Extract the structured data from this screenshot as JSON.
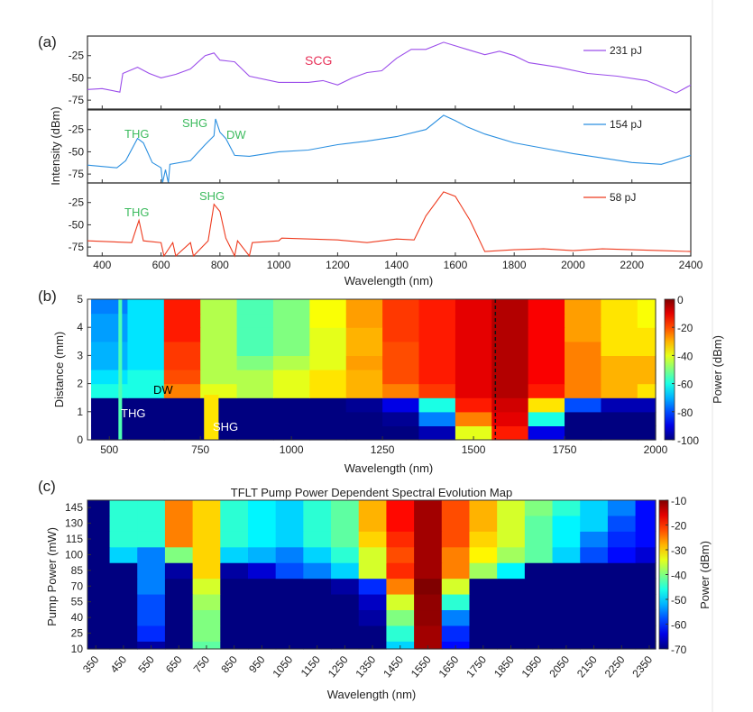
{
  "chart_data": [
    {
      "type": "line",
      "panel_label": "(a)",
      "xlabel": "Wavelength (nm)",
      "ylabel": "Intensity (dBm)",
      "xlim": [
        350,
        2400
      ],
      "ylim": [
        -85,
        -3
      ],
      "xticks": [
        400,
        600,
        800,
        1000,
        1200,
        1400,
        1600,
        1800,
        2000,
        2200,
        2400
      ],
      "yticks": [
        -25,
        -50,
        -75
      ],
      "series": [
        {
          "name": "231 pJ",
          "color": "#9b4dea",
          "x": [
            350,
            400,
            460,
            470,
            520,
            560,
            600,
            650,
            700,
            750,
            780,
            800,
            850,
            900,
            1000,
            1100,
            1150,
            1200,
            1250,
            1300,
            1350,
            1400,
            1450,
            1500,
            1560,
            1640,
            1700,
            1750,
            1800,
            1850,
            1950,
            2050,
            2150,
            2250,
            2350,
            2400
          ],
          "y": [
            -63,
            -62,
            -66,
            -45,
            -38,
            -45,
            -50,
            -46,
            -40,
            -25,
            -22,
            -30,
            -32,
            -48,
            -55,
            -55,
            -53,
            -58,
            -50,
            -44,
            -42,
            -28,
            -18,
            -18,
            -10,
            -18,
            -24,
            -20,
            -25,
            -33,
            -38,
            -45,
            -48,
            -53,
            -67,
            -58
          ]
        },
        {
          "name": "154 pJ",
          "color": "#2a8fe0",
          "x": [
            350,
            450,
            480,
            520,
            540,
            570,
            600,
            605,
            615,
            625,
            630,
            700,
            750,
            780,
            785,
            800,
            820,
            850,
            900,
            1000,
            1100,
            1200,
            1300,
            1400,
            1500,
            1560,
            1600,
            1640,
            1700,
            1800,
            1900,
            2000,
            2100,
            2200,
            2300,
            2400
          ],
          "y": [
            -65,
            -68,
            -60,
            -35,
            -40,
            -62,
            -68,
            -85,
            -70,
            -85,
            -64,
            -60,
            -42,
            -32,
            -13,
            -28,
            -35,
            -54,
            -55,
            -50,
            -48,
            -42,
            -38,
            -33,
            -25,
            -9,
            -15,
            -22,
            -30,
            -40,
            -46,
            -52,
            -57,
            -62,
            -64,
            -54
          ]
        },
        {
          "name": "58 pJ",
          "color": "#ee3a1e",
          "x": [
            350,
            500,
            510,
            525,
            540,
            600,
            610,
            640,
            650,
            700,
            710,
            760,
            780,
            800,
            820,
            850,
            860,
            900,
            910,
            1000,
            1010,
            1200,
            1300,
            1400,
            1460,
            1500,
            1560,
            1600,
            1650,
            1700,
            1800,
            1900,
            2000,
            2100,
            2200,
            2300,
            2400
          ],
          "y": [
            -68,
            -70,
            -60,
            -45,
            -68,
            -70,
            -85,
            -70,
            -85,
            -70,
            -85,
            -68,
            -27,
            -35,
            -65,
            -85,
            -68,
            -85,
            -70,
            -68,
            -65,
            -67,
            -70,
            -66,
            -67,
            -40,
            -13,
            -18,
            -45,
            -80,
            -78,
            -77,
            -79,
            -77,
            -78,
            -79,
            -80
          ]
        }
      ],
      "annotations": [
        {
          "text": "SCG",
          "color": "#e8335a"
        },
        {
          "text": "THG",
          "color": "#3dbb5e"
        },
        {
          "text": "SHG",
          "color": "#3dbb5e"
        },
        {
          "text": "DW",
          "color": "#3dbb5e"
        },
        {
          "text": "THG",
          "color": "#3dbb5e"
        },
        {
          "text": "SHG",
          "color": "#3dbb5e"
        }
      ]
    },
    {
      "type": "heatmap",
      "panel_label": "(b)",
      "xlabel": "Wavelength (nm)",
      "ylabel": "Distance (mm)",
      "colorbar_label": "Power (dBm)",
      "xlim": [
        440,
        2000
      ],
      "ylim": [
        0,
        5
      ],
      "clim": [
        -100,
        0
      ],
      "xticks": [
        500,
        750,
        1000,
        1250,
        1500,
        1750,
        2000
      ],
      "yticks": [
        0,
        1,
        2,
        3,
        4,
        5
      ],
      "cticks": [
        0,
        -20,
        -40,
        -60,
        -80,
        -100
      ],
      "x_centers": [
        500,
        600,
        700,
        800,
        900,
        1000,
        1100,
        1200,
        1300,
        1400,
        1500,
        1600,
        1700,
        1800,
        1900,
        2000
      ],
      "x_bin": 100,
      "y_starts": [
        0,
        0.5,
        1,
        1.5,
        2,
        2.5,
        3,
        3.5,
        4,
        4.5
      ],
      "y_bin": 0.5,
      "values": [
        [
          -100,
          -100,
          -100,
          -100,
          -100,
          -100,
          -100,
          -100,
          -100,
          -95,
          -40,
          -15,
          -90,
          -100,
          -100,
          -100
        ],
        [
          -100,
          -100,
          -100,
          -100,
          -100,
          -100,
          -100,
          -100,
          -98,
          -75,
          -25,
          -10,
          -60,
          -100,
          -100,
          -100
        ],
        [
          -100,
          -100,
          -100,
          -100,
          -100,
          -100,
          -100,
          -98,
          -90,
          -60,
          -15,
          -8,
          -35,
          -80,
          -95,
          -95
        ],
        [
          -60,
          -60,
          -25,
          -40,
          -45,
          -40,
          -35,
          -30,
          -25,
          -18,
          -10,
          -5,
          -15,
          -25,
          -30,
          -35
        ],
        [
          -65,
          -60,
          -20,
          -45,
          -45,
          -40,
          -35,
          -30,
          -20,
          -15,
          -10,
          -5,
          -12,
          -25,
          -30,
          -30
        ],
        [
          -70,
          -65,
          -18,
          -45,
          -50,
          -45,
          -40,
          -28,
          -20,
          -15,
          -10,
          -5,
          -12,
          -25,
          -30,
          -30
        ],
        [
          -70,
          -65,
          -18,
          -45,
          -55,
          -50,
          -40,
          -30,
          -20,
          -15,
          -10,
          -5,
          -12,
          -25,
          -35,
          -35
        ],
        [
          -72,
          -65,
          -15,
          -45,
          -55,
          -50,
          -40,
          -30,
          -18,
          -15,
          -10,
          -5,
          -12,
          -28,
          -35,
          -35
        ],
        [
          -72,
          -65,
          -15,
          -45,
          -55,
          -50,
          -38,
          -28,
          -18,
          -15,
          -10,
          -5,
          -12,
          -28,
          -35,
          -38
        ],
        [
          -75,
          -65,
          -15,
          -45,
          -55,
          -50,
          -38,
          -28,
          -18,
          -15,
          -10,
          -5,
          -12,
          -28,
          -35,
          -38
        ]
      ],
      "features": [
        {
          "name": "THG",
          "x": 530,
          "width": 10,
          "y": [
            0,
            5
          ],
          "value": -55
        },
        {
          "name": "SHG",
          "x": 780,
          "width": 40,
          "y": [
            0,
            1.6
          ],
          "value": -35
        }
      ],
      "pump_line_nm": 1560,
      "annotations": [
        {
          "text": "DW",
          "color": "#000000"
        },
        {
          "text": "THG",
          "color": "#ffffff"
        },
        {
          "text": "SHG",
          "color": "#ffffff"
        }
      ]
    },
    {
      "type": "heatmap",
      "panel_label": "(c)",
      "title": "TFLT Pump Power Dependent Spectral Evolution Map",
      "xlabel": "Wavelength (nm)",
      "ylabel": "Pump Power (mW)",
      "colorbar_label": "Power (dBm)",
      "xlim": [
        320,
        2373
      ],
      "ylim": [
        10,
        152
      ],
      "clim": [
        -70,
        -10
      ],
      "xticks": [
        350,
        450,
        550,
        650,
        750,
        850,
        950,
        1050,
        1150,
        1250,
        1350,
        1450,
        1550,
        1650,
        1750,
        1850,
        1950,
        2050,
        2150,
        2250,
        2350
      ],
      "yticks": [
        10,
        25,
        40,
        55,
        70,
        85,
        100,
        115,
        130,
        145
      ],
      "cticks": [
        -10,
        -20,
        -30,
        -40,
        -50,
        -60,
        -70
      ],
      "x_centers": [
        350,
        450,
        550,
        650,
        750,
        850,
        950,
        1050,
        1150,
        1250,
        1350,
        1450,
        1550,
        1650,
        1750,
        1850,
        1950,
        2050,
        2150,
        2250,
        2350
      ],
      "x_bin": 100,
      "y_centers": [
        10,
        25,
        40,
        55,
        70,
        85,
        100,
        115,
        130,
        145
      ],
      "y_bin": 15,
      "values": [
        [
          -70,
          -70,
          -68,
          -70,
          -42,
          -70,
          -70,
          -70,
          -70,
          -70,
          -70,
          -50,
          -12,
          -62,
          -70,
          -70,
          -70,
          -70,
          -70,
          -70,
          -70
        ],
        [
          -70,
          -70,
          -60,
          -70,
          -40,
          -70,
          -70,
          -70,
          -70,
          -70,
          -70,
          -45,
          -12,
          -60,
          -70,
          -70,
          -70,
          -70,
          -70,
          -70,
          -70
        ],
        [
          -70,
          -70,
          -58,
          -70,
          -40,
          -70,
          -70,
          -70,
          -70,
          -70,
          -68,
          -40,
          -11,
          -55,
          -70,
          -70,
          -70,
          -70,
          -70,
          -70,
          -70
        ],
        [
          -70,
          -70,
          -58,
          -70,
          -38,
          -70,
          -70,
          -70,
          -70,
          -70,
          -66,
          -35,
          -11,
          -45,
          -70,
          -70,
          -70,
          -70,
          -70,
          -70,
          -70
        ],
        [
          -70,
          -70,
          -55,
          -70,
          -35,
          -70,
          -70,
          -70,
          -70,
          -68,
          -60,
          -25,
          -10,
          -35,
          -70,
          -70,
          -70,
          -70,
          -70,
          -70,
          -70
        ],
        [
          -70,
          -70,
          -55,
          -68,
          -30,
          -68,
          -65,
          -58,
          -55,
          -50,
          -35,
          -20,
          -12,
          -25,
          -38,
          -48,
          -70,
          -70,
          -70,
          -70,
          -70
        ],
        [
          -70,
          -50,
          -55,
          -40,
          -30,
          -50,
          -52,
          -55,
          -50,
          -45,
          -35,
          -22,
          -12,
          -25,
          -32,
          -38,
          -42,
          -50,
          -58,
          -62,
          -65
        ],
        [
          -70,
          -45,
          -45,
          -25,
          -30,
          -45,
          -48,
          -50,
          -45,
          -42,
          -30,
          -20,
          -12,
          -22,
          -30,
          -35,
          -42,
          -48,
          -55,
          -60,
          -62
        ],
        [
          -70,
          -45,
          -45,
          -25,
          -30,
          -45,
          -48,
          -50,
          -45,
          -42,
          -28,
          -18,
          -12,
          -22,
          -28,
          -35,
          -42,
          -48,
          -50,
          -58,
          -62
        ],
        [
          -70,
          -45,
          -45,
          -25,
          -30,
          -45,
          -48,
          -50,
          -45,
          -42,
          -28,
          -18,
          -12,
          -22,
          -28,
          -35,
          -40,
          -45,
          -50,
          -55,
          -62
        ]
      ]
    }
  ]
}
